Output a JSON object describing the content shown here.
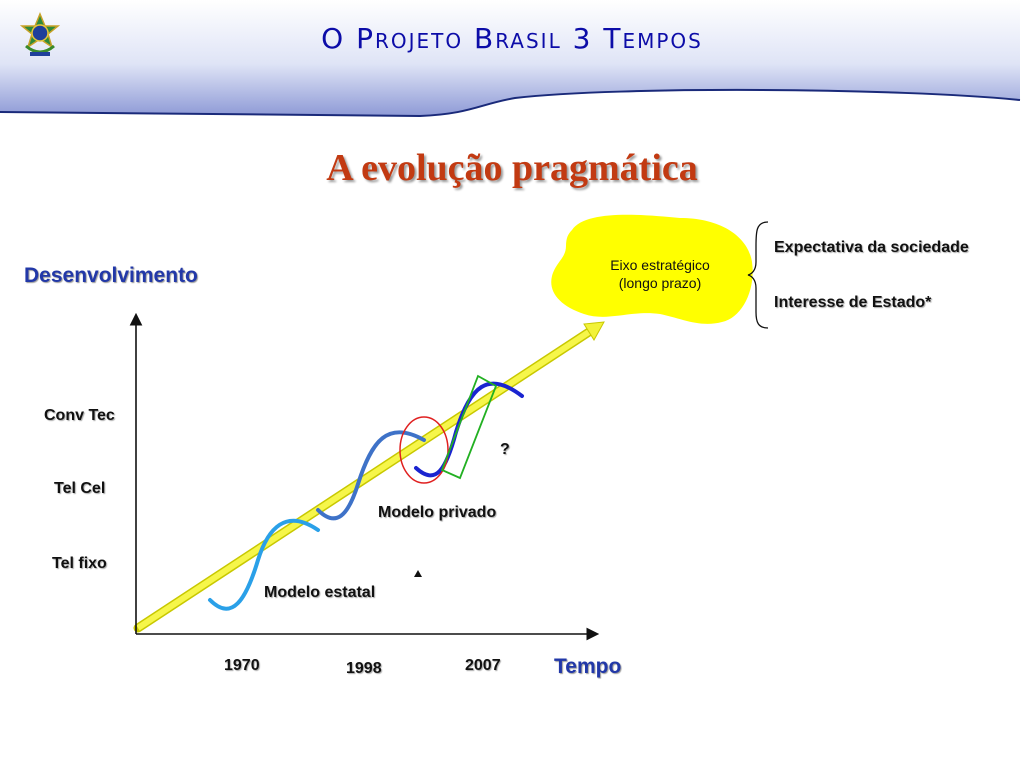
{
  "header": {
    "title": "O Projeto Brasil 3 Tempos"
  },
  "slide": {
    "subtitle": "A evolução pragmática"
  },
  "axes": {
    "y_label": "Desenvolvimento",
    "x_label": "Tempo"
  },
  "levels": [
    "Conv Tec",
    "Tel Cel",
    "Tel fixo"
  ],
  "years": [
    "1970",
    "1998",
    "2007"
  ],
  "models": {
    "state": "Modelo estatal",
    "private": "Modelo privado",
    "question": "?"
  },
  "cloud": {
    "line1": "Eixo  estratégico",
    "line2": "(longo prazo)"
  },
  "brace_items": [
    "Expectativa da sociedade",
    "Interesse de Estado*"
  ],
  "colors": {
    "title_blue": "#0c0ca8",
    "subtitle_red": "#c23a12",
    "axis_label_blue": "#2238a8",
    "arrow_yellow": "#f2f23a",
    "cloud_yellow": "#ffff00"
  }
}
